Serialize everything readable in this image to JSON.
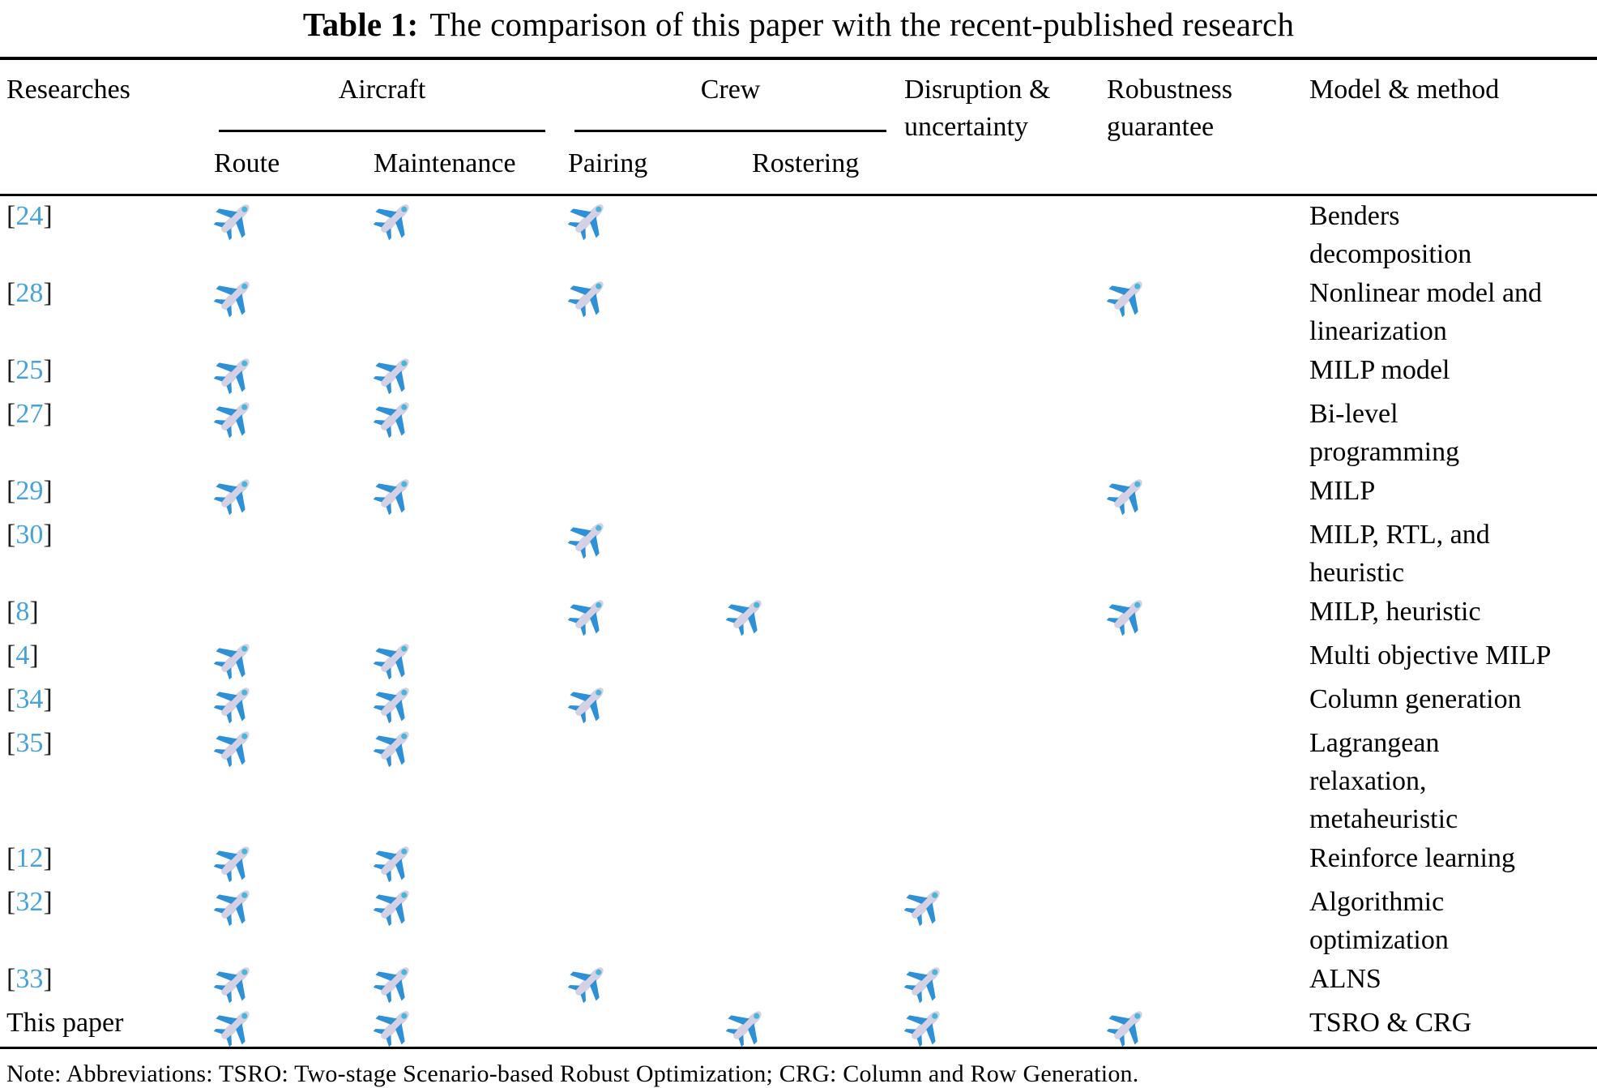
{
  "title": {
    "label": "Table 1:",
    "text": "The comparison of this paper with the recent-published research"
  },
  "table": {
    "headers": {
      "researches": "Researches",
      "aircraft": "Aircraft",
      "crew": "Crew",
      "disruption": "Disruption & uncertainty",
      "robustness": "Robustness guarantee",
      "model": "Model & method",
      "route": "Route",
      "maintenance": "Maintenance",
      "pairing": "Pairing",
      "rostering": "Rostering"
    },
    "mark_icon": "airplane-icon",
    "rows": [
      {
        "ref": "24",
        "label": null,
        "marks": [
          "route",
          "maintenance",
          "pairing"
        ],
        "model": "Benders decomposition"
      },
      {
        "ref": "28",
        "label": null,
        "marks": [
          "route",
          "pairing",
          "robustness"
        ],
        "model": "Nonlinear model and linearization"
      },
      {
        "ref": "25",
        "label": null,
        "marks": [
          "route",
          "maintenance"
        ],
        "model": "MILP model"
      },
      {
        "ref": "27",
        "label": null,
        "marks": [
          "route",
          "maintenance"
        ],
        "model": "Bi-level programming"
      },
      {
        "ref": "29",
        "label": null,
        "marks": [
          "route",
          "maintenance",
          "robustness"
        ],
        "model": "MILP"
      },
      {
        "ref": "30",
        "label": null,
        "marks": [
          "pairing"
        ],
        "model": "MILP, RTL, and heuristic"
      },
      {
        "ref": "8",
        "label": null,
        "marks": [
          "pairing",
          "rostering",
          "robustness"
        ],
        "model": "MILP, heuristic"
      },
      {
        "ref": "4",
        "label": null,
        "marks": [
          "route",
          "maintenance"
        ],
        "model": "Multi objective MILP"
      },
      {
        "ref": "34",
        "label": null,
        "marks": [
          "route",
          "maintenance",
          "pairing"
        ],
        "model": "Column generation"
      },
      {
        "ref": "35",
        "label": null,
        "marks": [
          "route",
          "maintenance"
        ],
        "model": "Lagrangean relaxation, metaheuristic"
      },
      {
        "ref": "12",
        "label": null,
        "marks": [
          "route",
          "maintenance"
        ],
        "model": "Reinforce learning"
      },
      {
        "ref": "32",
        "label": null,
        "marks": [
          "route",
          "maintenance",
          "disruption"
        ],
        "model": "Algorithmic optimization"
      },
      {
        "ref": "33",
        "label": null,
        "marks": [
          "route",
          "maintenance",
          "pairing",
          "disruption"
        ],
        "model": "ALNS"
      },
      {
        "ref": null,
        "label": "This paper",
        "marks": [
          "route",
          "maintenance",
          "rostering",
          "disruption",
          "robustness"
        ],
        "model": "TSRO & CRG"
      }
    ]
  },
  "note": "Note: Abbreviations: TSRO: Two-stage Scenario-based Robust Optimization; CRG: Column and Row Generation.",
  "colors": {
    "reference_link": "#45a2da",
    "plane_wing": "#2e90d6",
    "plane_body": "#d4d1e4",
    "plane_window": "#49b5d8",
    "rule": "#000000"
  }
}
